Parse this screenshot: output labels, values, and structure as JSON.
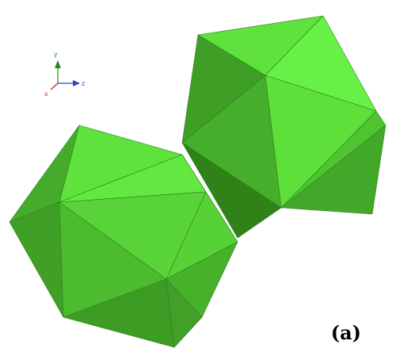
{
  "figure": {
    "panel_label": "(a)",
    "axis_triad": {
      "labels": {
        "y": "y",
        "x": "x",
        "z": "z"
      },
      "colors": {
        "x": "#cc2222",
        "y": "#1f8a1f",
        "z": "#2a44c8"
      }
    },
    "palette": {
      "lightest": "#67f046",
      "light": "#5fe23d",
      "mid": "#50c630",
      "dark": "#40a626",
      "darkest": "#338a1e",
      "edge": "#2f7f1c"
    }
  }
}
